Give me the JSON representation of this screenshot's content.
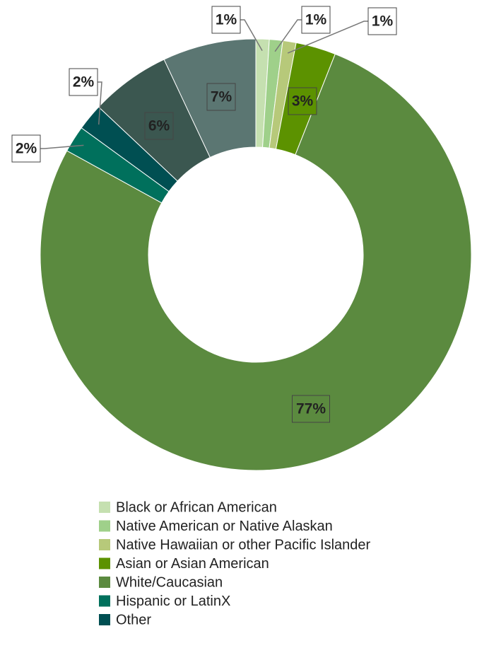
{
  "chart_data": {
    "type": "donut",
    "categories": [
      "Black or African American",
      "Native American or Native Alaskan",
      "Native Hawaiian or other Pacific Islander",
      "Asian or Asian American",
      "White/Caucasian",
      "Hispanic or LatinX",
      "Other",
      null,
      null
    ],
    "values": [
      1,
      1,
      1,
      3,
      77,
      2,
      2,
      6,
      7
    ],
    "value_labels": [
      "1%",
      "1%",
      "1%",
      "3%",
      "77%",
      "2%",
      "2%",
      "6%",
      "7%"
    ],
    "colors": [
      "#c5e0b0",
      "#9fd08a",
      "#b7c97a",
      "#5c9200",
      "#5b8a3f",
      "#00705c",
      "#004f52",
      "#3b5750",
      "#5b7672"
    ],
    "legend": "bottom"
  }
}
